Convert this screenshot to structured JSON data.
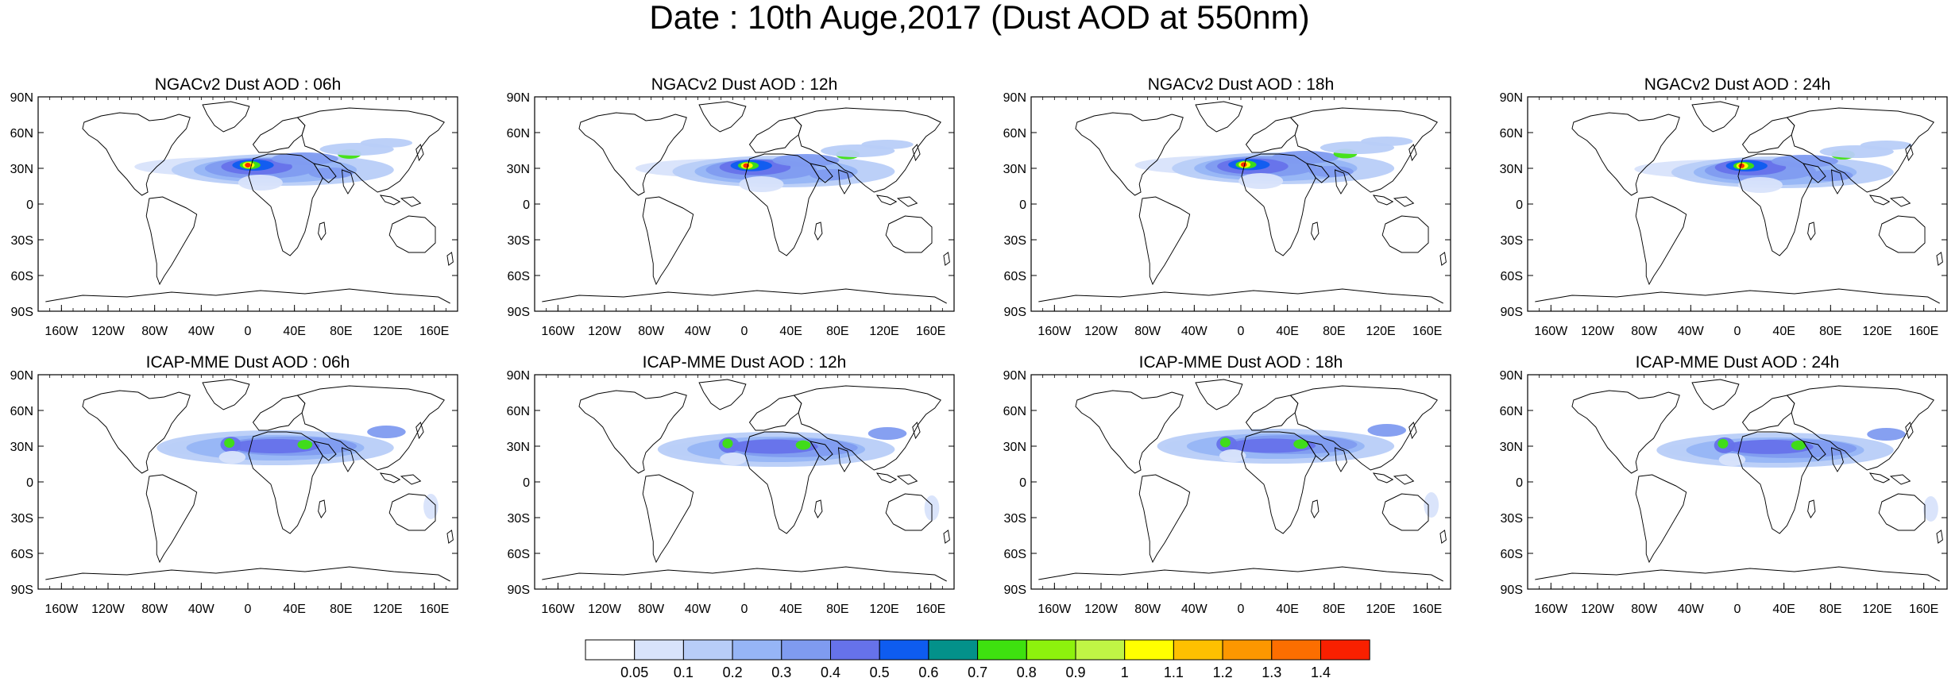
{
  "title": "Date : 10th Auge,2017 (Dust AOD at 550nm)",
  "panels": [
    {
      "title": "NGACv2 Dust AOD : 06h",
      "model": "NGACv2",
      "lead": "06h"
    },
    {
      "title": "NGACv2 Dust AOD : 12h",
      "model": "NGACv2",
      "lead": "12h"
    },
    {
      "title": "NGACv2 Dust AOD : 18h",
      "model": "NGACv2",
      "lead": "18h"
    },
    {
      "title": "NGACv2 Dust AOD : 24h",
      "model": "NGACv2",
      "lead": "24h"
    },
    {
      "title": "ICAP-MME Dust AOD : 06h",
      "model": "ICAP-MME",
      "lead": "06h"
    },
    {
      "title": "ICAP-MME Dust AOD : 12h",
      "model": "ICAP-MME",
      "lead": "12h"
    },
    {
      "title": "ICAP-MME Dust AOD : 18h",
      "model": "ICAP-MME",
      "lead": "18h"
    },
    {
      "title": "ICAP-MME Dust AOD : 24h",
      "model": "ICAP-MME",
      "lead": "24h"
    }
  ],
  "lat_ticks": [
    "90N",
    "60N",
    "30N",
    "0",
    "30S",
    "60S",
    "90S"
  ],
  "lon_ticks": [
    "160W",
    "120W",
    "80W",
    "40W",
    "0",
    "40E",
    "80E",
    "120E",
    "160E"
  ],
  "colorbar": {
    "labels": [
      "0.05",
      "0.1",
      "0.2",
      "0.3",
      "0.4",
      "0.5",
      "0.6",
      "0.7",
      "0.8",
      "0.9",
      "1",
      "1.1",
      "1.2",
      "1.3",
      "1.4"
    ],
    "colors": [
      "#ffffff",
      "#d8e3fb",
      "#b8cdf8",
      "#96b5f6",
      "#7f9bf0",
      "#6672ea",
      "#0e5cf0",
      "#03918a",
      "#3ee10f",
      "#8df20d",
      "#c0f545",
      "#ffff00",
      "#fec000",
      "#fd9700",
      "#fc6e00",
      "#f92000"
    ]
  },
  "land_outline_color": "#000000"
}
